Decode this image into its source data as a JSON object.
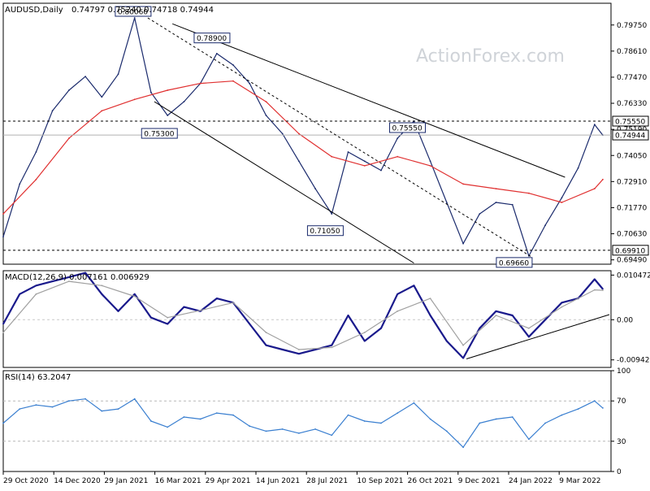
{
  "chart_data": [
    {
      "type": "line",
      "panel": "price",
      "title": "AUDUSD,Daily",
      "ohlc": "0.74797 0.75240 0.74718 0.74944",
      "watermark": "ActionForex.com",
      "ylim": [
        0.693,
        0.807
      ],
      "y_ticks": [
        "0.79750",
        "0.78610",
        "0.77470",
        "0.76330",
        "0.75190",
        "0.74050",
        "0.72910",
        "0.71770",
        "0.70630",
        "0.69490"
      ],
      "y_tick_values": [
        0.7975,
        0.7861,
        0.7747,
        0.7633,
        0.7519,
        0.7405,
        0.7291,
        0.7177,
        0.7063,
        0.6949
      ],
      "x_labels": [
        "29 Oct 2020",
        "14 Dec 2020",
        "29 Jan 2021",
        "16 Mar 2021",
        "29 Apr 2021",
        "14 Jun 2021",
        "28 Jul 2021",
        "10 Sep 2021",
        "26 Oct 2021",
        "9 Dec 2021",
        "24 Jan 2022",
        "9 Mar 2022"
      ],
      "series": [
        {
          "color": "#1a2a6c",
          "x": [
            0,
            10,
            20,
            30,
            40,
            50,
            60,
            70,
            80,
            90,
            100,
            110,
            120,
            130,
            140,
            150,
            160,
            170,
            180,
            190,
            200,
            210,
            220,
            230,
            240,
            250,
            260,
            270,
            280,
            290,
            300,
            310,
            320,
            330,
            340,
            350,
            360,
            365
          ],
          "values": [
            0.705,
            0.728,
            0.742,
            0.76,
            0.769,
            0.775,
            0.766,
            0.776,
            0.8006,
            0.768,
            0.758,
            0.764,
            0.772,
            0.785,
            0.78,
            0.772,
            0.758,
            0.75,
            0.738,
            0.726,
            0.715,
            0.742,
            0.738,
            0.734,
            0.748,
            0.7555,
            0.738,
            0.72,
            0.702,
            0.715,
            0.72,
            0.719,
            0.6966,
            0.71,
            0.722,
            0.735,
            0.754,
            0.7494
          ]
        },
        {
          "color": "#e03030",
          "x": [
            0,
            20,
            40,
            60,
            80,
            100,
            120,
            140,
            160,
            180,
            200,
            220,
            240,
            260,
            280,
            300,
            320,
            340,
            360,
            365
          ],
          "values": [
            0.715,
            0.73,
            0.748,
            0.76,
            0.765,
            0.769,
            0.772,
            0.773,
            0.764,
            0.75,
            0.74,
            0.736,
            0.74,
            0.736,
            0.728,
            0.726,
            0.724,
            0.72,
            0.726,
            0.73
          ]
        }
      ],
      "levels": [
        {
          "label": "0.75550",
          "value": 0.7555,
          "style": "dashed"
        },
        {
          "label": "0.69910",
          "value": 0.6991,
          "style": "dashed"
        },
        {
          "label": "0.74944",
          "value": 0.74944,
          "style": "solid",
          "badge": true
        }
      ],
      "annotations": [
        {
          "label": "0.80060",
          "x": 88,
          "y": 0.8006
        },
        {
          "label": "0.78900",
          "x": 136,
          "y": 0.789
        },
        {
          "label": "0.75300",
          "x": 104,
          "y": 0.753
        },
        {
          "label": "0.71050",
          "x": 205,
          "y": 0.7105
        },
        {
          "label": "0.75550",
          "x": 255,
          "y": 0.7555
        },
        {
          "label": "0.69660",
          "x": 320,
          "y": 0.6966
        }
      ],
      "trendlines": [
        {
          "x": [
            103,
            342
          ],
          "y": [
            0.798,
            0.731
          ],
          "style": "solid"
        },
        {
          "x": [
            92,
            250
          ],
          "y": [
            0.764,
            0.6935
          ],
          "style": "solid"
        },
        {
          "x": [
            88,
            322
          ],
          "y": [
            0.8006,
            0.696
          ],
          "style": "dashed"
        }
      ]
    },
    {
      "type": "line",
      "panel": "macd",
      "title": "MACD(12,26,9) 0.007161 0.006929",
      "ylim": [
        -0.0112,
        0.0115
      ],
      "y_ticks": [
        "0.010472",
        "0.00",
        "-0.009426"
      ],
      "y_tick_values": [
        0.010472,
        0.0,
        -0.009426
      ],
      "series": [
        {
          "color": "#1a1a8c",
          "x": [
            0,
            10,
            20,
            30,
            40,
            50,
            60,
            70,
            80,
            90,
            100,
            110,
            120,
            130,
            140,
            150,
            160,
            170,
            180,
            190,
            200,
            210,
            220,
            230,
            240,
            250,
            260,
            270,
            280,
            290,
            300,
            310,
            320,
            330,
            340,
            350,
            360,
            365
          ],
          "values": [
            -0.001,
            0.006,
            0.008,
            0.009,
            0.01,
            0.011,
            0.006,
            0.002,
            0.006,
            0.0005,
            -0.001,
            0.003,
            0.002,
            0.005,
            0.004,
            -0.001,
            -0.006,
            -0.007,
            -0.008,
            -0.007,
            -0.006,
            0.001,
            -0.005,
            -0.002,
            0.006,
            0.008,
            0.001,
            -0.005,
            -0.009,
            -0.002,
            0.002,
            0.001,
            -0.004,
            0.0,
            0.004,
            0.005,
            0.0095,
            0.0072
          ]
        },
        {
          "color": "#a0a0a0",
          "x": [
            0,
            20,
            40,
            60,
            80,
            100,
            120,
            140,
            160,
            180,
            200,
            220,
            240,
            260,
            280,
            300,
            320,
            340,
            360,
            365
          ],
          "values": [
            -0.003,
            0.006,
            0.009,
            0.008,
            0.0055,
            0.0005,
            0.0022,
            0.004,
            -0.003,
            -0.007,
            -0.0065,
            -0.003,
            0.002,
            0.005,
            -0.006,
            0.001,
            -0.002,
            0.003,
            0.007,
            0.0069
          ]
        }
      ],
      "trendlines": [
        {
          "x": [
            282,
            369
          ],
          "y": [
            -0.0092,
            0.0012
          ],
          "style": "solid"
        }
      ]
    },
    {
      "type": "line",
      "panel": "rsi",
      "title": "RSI(14) 63.2047",
      "ylim": [
        0,
        100
      ],
      "y_ticks": [
        "100",
        "70",
        "30",
        "0"
      ],
      "y_tick_values": [
        100,
        70,
        30,
        0
      ],
      "levels": [
        70,
        30
      ],
      "series": [
        {
          "color": "#3a7fd0",
          "x": [
            0,
            10,
            20,
            30,
            40,
            50,
            60,
            70,
            80,
            90,
            100,
            110,
            120,
            130,
            140,
            150,
            160,
            170,
            180,
            190,
            200,
            210,
            220,
            230,
            240,
            250,
            260,
            270,
            280,
            290,
            300,
            310,
            320,
            330,
            340,
            350,
            360,
            365
          ],
          "values": [
            48,
            62,
            66,
            64,
            70,
            72,
            60,
            62,
            72,
            50,
            44,
            54,
            52,
            58,
            56,
            45,
            40,
            42,
            38,
            42,
            36,
            56,
            50,
            48,
            58,
            68,
            52,
            40,
            24,
            48,
            52,
            54,
            32,
            48,
            56,
            62,
            70,
            63
          ]
        }
      ]
    }
  ]
}
